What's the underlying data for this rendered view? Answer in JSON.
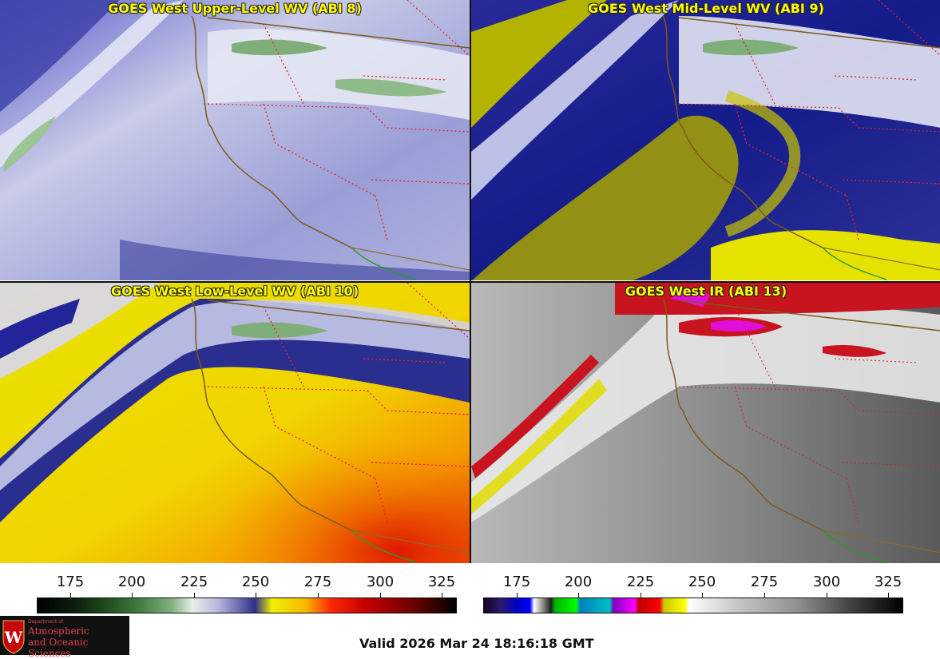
{
  "panels": [
    {
      "title": "GOES West Upper-Level WV (ABI 8)"
    },
    {
      "title": "GOES West Mid-Level WV (ABI 9)"
    },
    {
      "title": "GOES West Low-Level WV (ABI 10)"
    },
    {
      "title": "GOES West IR (ABI 13)"
    }
  ],
  "colorbars": {
    "wv": {
      "ticks": [
        "175",
        "200",
        "225",
        "250",
        "275",
        "300",
        "325"
      ]
    },
    "ir": {
      "ticks": [
        "175",
        "200",
        "225",
        "250",
        "275",
        "300",
        "325"
      ]
    }
  },
  "logo": {
    "line1": "Department of",
    "line2": "Atmospheric",
    "line3": "and Oceanic Sciences",
    "crest_letter": "W"
  },
  "footer": {
    "valid": "Valid 2026 Mar 24 18:16:18 GMT"
  },
  "colors": {
    "title": "#ffff00",
    "state_lines": "#e8202a",
    "coast": "#7a5a1a",
    "mexico_border": "#2a9a2a"
  }
}
